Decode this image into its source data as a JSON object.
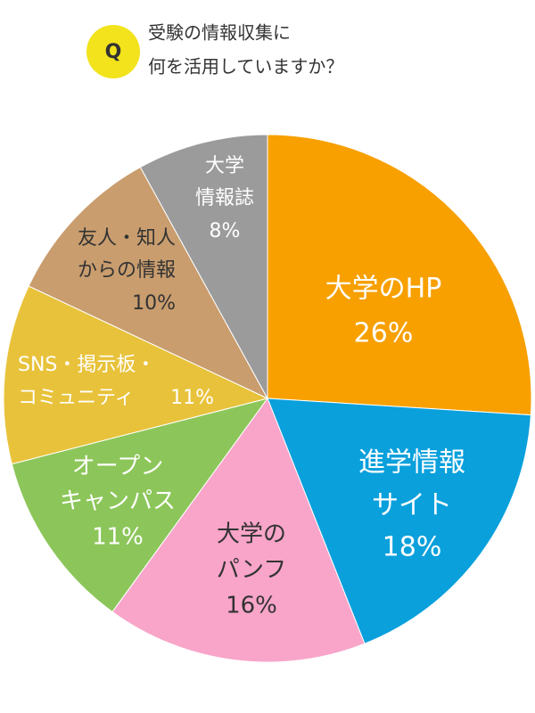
{
  "chart_data": {
    "type": "pie",
    "badge": "Q",
    "title": [
      "受験の情報収集に",
      "何を活用していますか？"
    ],
    "categories": [
      [
        "大学のHP"
      ],
      [
        "進学情報",
        "サイト"
      ],
      [
        "大学の",
        "パンフ"
      ],
      [
        "オープン",
        "キャンパス"
      ],
      [
        "SNS・掲示板・",
        "コミュニティ"
      ],
      [
        "友人・知人",
        "からの情報"
      ],
      [
        "大学",
        "情報誌"
      ]
    ],
    "values": [
      26,
      18,
      16,
      11,
      11,
      10,
      8
    ],
    "value_labels": [
      "26%",
      "18%",
      "16%",
      "11%",
      "11%",
      "10%",
      "8%"
    ],
    "colors": [
      "#f7a000",
      "#0aa0dc",
      "#f8a5c9",
      "#8cc65a",
      "#e8c23a",
      "#c99d6e",
      "#9b9b9b"
    ]
  }
}
